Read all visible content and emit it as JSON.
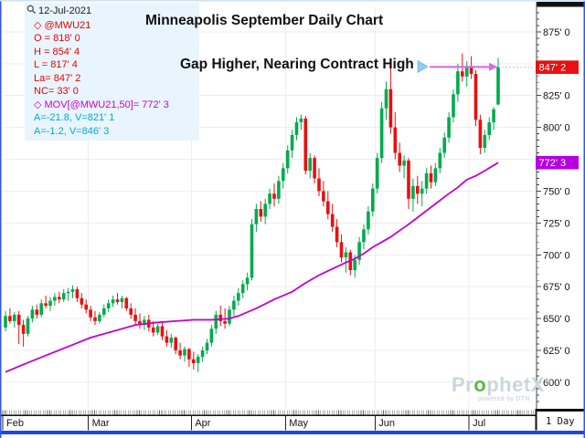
{
  "window": {
    "border_blue": "#3657e0",
    "top_strip": "#cfe2f4",
    "bottom_bar": "#2446d8"
  },
  "header": {
    "title": "Minneapolis September Daily Chart"
  },
  "annotation": {
    "text": "Gap Higher, Nearing Contract High"
  },
  "legend": {
    "date": "12-Jul-2021",
    "rows": [
      {
        "icon": "diamond",
        "text": "@MWU21",
        "color": "#ee0000"
      },
      {
        "text": "O = 818' 0",
        "color": "#ee0000"
      },
      {
        "text": "H = 854' 4",
        "color": "#ee0000"
      },
      {
        "text": "L = 817' 4",
        "color": "#ee0000"
      },
      {
        "text": "La= 847' 2",
        "color": "#ee0000"
      },
      {
        "text": "NC= 33' 0",
        "color": "#ee0000"
      },
      {
        "icon": "diamond",
        "text": "MOV[@MWU21,50]= 772' 3",
        "color": "#cc00cc"
      },
      {
        "text": "A=-21.8, V=821' 1",
        "color": "#00a8d8"
      },
      {
        "text": "A=-1.2, V=846' 3",
        "color": "#00a8d8"
      }
    ]
  },
  "watermark": {
    "brand": "ProphetX",
    "reg": "®",
    "powered": "powered by DTN"
  },
  "axis": {
    "interval": "1 Day"
  },
  "chart_data": {
    "type": "candlestick",
    "title": "Minneapolis September Daily Chart",
    "symbol": "@MWU21",
    "interval": "1 Day",
    "y_axis": {
      "min": 600,
      "max": 875,
      "tick_step": 25,
      "minor_step": 5,
      "unit": "cents-eighths"
    },
    "months": [
      "Feb",
      "Mar",
      "Apr",
      "May",
      "Jun",
      "Jul"
    ],
    "month_start_index": [
      0,
      19,
      42,
      63,
      83,
      104
    ],
    "last_price": 847.25,
    "prev_close": 814.25,
    "ma_period": 50,
    "ma_last": 772.375,
    "colors": {
      "up": "#00ab4e",
      "down": "#ea0f0f",
      "ma": "#c400d0",
      "arrow": "#d76ce8",
      "last_badge": "#e81010",
      "ma_badge": "#b400e0",
      "grid": "#ededed"
    },
    "candles": [
      [
        643,
        656,
        640,
        652
      ],
      [
        652,
        658,
        646,
        648
      ],
      [
        648,
        655,
        643,
        653
      ],
      [
        653,
        656,
        630,
        645
      ],
      [
        645,
        649,
        628,
        638
      ],
      [
        638,
        652,
        636,
        650
      ],
      [
        650,
        660,
        647,
        657
      ],
      [
        657,
        661,
        650,
        653
      ],
      [
        653,
        665,
        651,
        662
      ],
      [
        662,
        668,
        658,
        660
      ],
      [
        660,
        667,
        656,
        664
      ],
      [
        664,
        670,
        660,
        667
      ],
      [
        667,
        671,
        662,
        665
      ],
      [
        665,
        673,
        663,
        670
      ],
      [
        670,
        674,
        664,
        671
      ],
      [
        671,
        676,
        666,
        673
      ],
      [
        673,
        675,
        663,
        666
      ],
      [
        666,
        670,
        658,
        661
      ],
      [
        661,
        665,
        654,
        657
      ],
      [
        657,
        660,
        648,
        651
      ],
      [
        651,
        656,
        645,
        648
      ],
      [
        648,
        655,
        646,
        653
      ],
      [
        653,
        661,
        651,
        658
      ],
      [
        658,
        665,
        655,
        662
      ],
      [
        662,
        668,
        659,
        665
      ],
      [
        665,
        670,
        661,
        663
      ],
      [
        663,
        668,
        658,
        666
      ],
      [
        666,
        667,
        656,
        658
      ],
      [
        658,
        662,
        650,
        653
      ],
      [
        653,
        658,
        645,
        648
      ],
      [
        648,
        654,
        642,
        645
      ],
      [
        645,
        652,
        641,
        649
      ],
      [
        649,
        653,
        640,
        643
      ],
      [
        643,
        648,
        636,
        639
      ],
      [
        639,
        646,
        637,
        644
      ],
      [
        644,
        647,
        633,
        636
      ],
      [
        636,
        641,
        628,
        631
      ],
      [
        631,
        638,
        627,
        635
      ],
      [
        635,
        636,
        622,
        625
      ],
      [
        625,
        631,
        618,
        621
      ],
      [
        621,
        628,
        616,
        626
      ],
      [
        626,
        627,
        612,
        618
      ],
      [
        618,
        624,
        610,
        615
      ],
      [
        615,
        622,
        608,
        620
      ],
      [
        620,
        628,
        616,
        625
      ],
      [
        625,
        634,
        622,
        631
      ],
      [
        631,
        645,
        628,
        642
      ],
      [
        642,
        656,
        638,
        653
      ],
      [
        653,
        660,
        644,
        648
      ],
      [
        648,
        658,
        642,
        646
      ],
      [
        646,
        660,
        644,
        657
      ],
      [
        657,
        668,
        652,
        664
      ],
      [
        664,
        674,
        660,
        670
      ],
      [
        670,
        680,
        666,
        677
      ],
      [
        677,
        686,
        672,
        682
      ],
      [
        682,
        728,
        680,
        724
      ],
      [
        724,
        740,
        718,
        736
      ],
      [
        736,
        742,
        726,
        730
      ],
      [
        730,
        744,
        724,
        740
      ],
      [
        740,
        752,
        736,
        748
      ],
      [
        748,
        756,
        738,
        744
      ],
      [
        744,
        762,
        740,
        758
      ],
      [
        758,
        772,
        752,
        768
      ],
      [
        768,
        786,
        764,
        782
      ],
      [
        782,
        798,
        776,
        794
      ],
      [
        794,
        808,
        790,
        804
      ],
      [
        804,
        810,
        798,
        807
      ],
      [
        807,
        809,
        763,
        766
      ],
      [
        766,
        780,
        760,
        776
      ],
      [
        776,
        778,
        756,
        760
      ],
      [
        760,
        768,
        746,
        750
      ],
      [
        750,
        758,
        738,
        742
      ],
      [
        742,
        750,
        728,
        732
      ],
      [
        732,
        740,
        718,
        722
      ],
      [
        722,
        728,
        706,
        710
      ],
      [
        710,
        716,
        694,
        698
      ],
      [
        698,
        706,
        686,
        702
      ],
      [
        702,
        704,
        684,
        688
      ],
      [
        688,
        700,
        682,
        696
      ],
      [
        696,
        714,
        692,
        710
      ],
      [
        710,
        724,
        704,
        720
      ],
      [
        720,
        738,
        716,
        734
      ],
      [
        734,
        756,
        730,
        752
      ],
      [
        752,
        780,
        748,
        776
      ],
      [
        776,
        820,
        772,
        815
      ],
      [
        815,
        836,
        806,
        830
      ],
      [
        830,
        847,
        795,
        800
      ],
      [
        800,
        812,
        775,
        780
      ],
      [
        780,
        788,
        765,
        770
      ],
      [
        770,
        778,
        760,
        774
      ],
      [
        774,
        776,
        736,
        744
      ],
      [
        744,
        760,
        734,
        754
      ],
      [
        754,
        762,
        740,
        748
      ],
      [
        748,
        758,
        738,
        752
      ],
      [
        752,
        768,
        748,
        764
      ],
      [
        764,
        770,
        752,
        757
      ],
      [
        757,
        772,
        754,
        768
      ],
      [
        768,
        784,
        764,
        780
      ],
      [
        780,
        796,
        776,
        792
      ],
      [
        792,
        812,
        788,
        808
      ],
      [
        808,
        830,
        804,
        826
      ],
      [
        826,
        850,
        820,
        844
      ],
      [
        844,
        858,
        836,
        840
      ],
      [
        840,
        852,
        832,
        848
      ],
      [
        848,
        856,
        838,
        842
      ],
      [
        842,
        845,
        801,
        806
      ],
      [
        806,
        810,
        779,
        784
      ],
      [
        784,
        798,
        780,
        794
      ],
      [
        794,
        808,
        790,
        804
      ],
      [
        804,
        816,
        798,
        814.25
      ],
      [
        818,
        854.5,
        817.5,
        847.25
      ]
    ],
    "ma_points": [
      [
        0,
        608
      ],
      [
        4,
        614
      ],
      [
        9,
        621
      ],
      [
        14,
        628
      ],
      [
        19,
        635
      ],
      [
        24,
        640
      ],
      [
        29,
        645
      ],
      [
        34,
        647
      ],
      [
        38,
        648
      ],
      [
        42,
        649
      ],
      [
        46,
        649
      ],
      [
        50,
        650
      ],
      [
        52,
        652
      ],
      [
        56,
        658
      ],
      [
        60,
        665
      ],
      [
        64,
        671
      ],
      [
        67,
        678
      ],
      [
        70,
        684
      ],
      [
        73,
        689
      ],
      [
        76,
        694
      ],
      [
        78,
        697
      ],
      [
        80,
        701
      ],
      [
        82,
        706
      ],
      [
        84,
        710
      ],
      [
        86,
        714
      ],
      [
        88,
        719
      ],
      [
        90,
        724
      ],
      [
        93,
        732
      ],
      [
        96,
        740
      ],
      [
        99,
        748
      ],
      [
        101,
        753
      ],
      [
        103,
        759
      ],
      [
        105,
        762
      ],
      [
        107,
        766
      ],
      [
        110,
        772.4
      ]
    ]
  }
}
